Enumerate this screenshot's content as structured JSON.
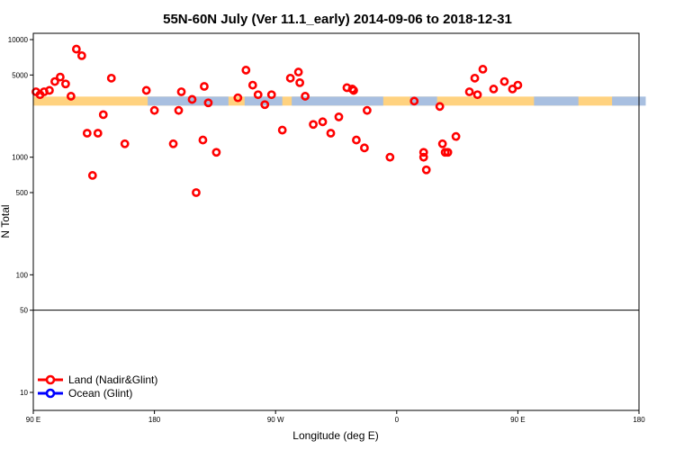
{
  "chart_data": {
    "type": "scatter",
    "title": "55N-60N July (Ver 11.1_early)   2014-09-06 to 2018-12-31",
    "xlabel": "Longitude (deg E)",
    "ylabel": "N Total",
    "y_scale": "log",
    "xlim": [
      90,
      450
    ],
    "ylim": [
      10,
      10000
    ],
    "x_ticks": [
      {
        "value": 90,
        "label": "90 E"
      },
      {
        "value": 180,
        "label": "180"
      },
      {
        "value": 270,
        "label": "90 W"
      },
      {
        "value": 360,
        "label": "0"
      },
      {
        "value": 450,
        "label": "90 E"
      },
      {
        "value": 540,
        "label": "180"
      }
    ],
    "y_ticks": [
      {
        "value": 10,
        "label": "10"
      },
      {
        "value": 50,
        "label": "50"
      },
      {
        "value": 100,
        "label": "100"
      },
      {
        "value": 500,
        "label": "500"
      },
      {
        "value": 1000,
        "label": "1000"
      },
      {
        "value": 5000,
        "label": "5000"
      },
      {
        "value": 10000,
        "label": "10000"
      }
    ],
    "reference_line": 50,
    "legend_position": "bottom-left",
    "series": [
      {
        "name": "Land (Nadir&Glint)",
        "color": "#ff0000",
        "points": [
          [
            92,
            3600
          ],
          [
            95,
            3400
          ],
          [
            98,
            3600
          ],
          [
            102,
            3700
          ],
          [
            106,
            4400
          ],
          [
            110,
            4800
          ],
          [
            114,
            4200
          ],
          [
            118,
            3300
          ],
          [
            122,
            8300
          ],
          [
            126,
            7300
          ],
          [
            130,
            1600
          ],
          [
            134,
            700
          ],
          [
            138,
            1600
          ],
          [
            142,
            2300
          ],
          [
            148,
            4700
          ],
          [
            158,
            1300
          ],
          [
            174,
            3700
          ],
          [
            180,
            2500
          ],
          [
            194,
            1300
          ],
          [
            198,
            2500
          ],
          [
            200,
            3600
          ],
          [
            208,
            3100
          ],
          [
            211,
            500
          ],
          [
            216,
            1400
          ],
          [
            217,
            4000
          ],
          [
            220,
            2900
          ],
          [
            226,
            1100
          ],
          [
            242,
            3200
          ],
          [
            248,
            5500
          ],
          [
            253,
            4100
          ],
          [
            257,
            3400
          ],
          [
            262,
            2800
          ],
          [
            267,
            3400
          ],
          [
            275,
            1700
          ],
          [
            281,
            4700
          ],
          [
            287,
            5300
          ],
          [
            288,
            4300
          ],
          [
            292,
            3300
          ],
          [
            298,
            1900
          ],
          [
            305,
            2000
          ],
          [
            311,
            1600
          ],
          [
            317,
            2200
          ],
          [
            323,
            3900
          ],
          [
            327,
            3800
          ],
          [
            328,
            3700
          ],
          [
            330,
            1400
          ],
          [
            336,
            1200
          ],
          [
            338,
            2500
          ],
          [
            355,
            1000
          ],
          [
            373,
            3000
          ],
          [
            380,
            1100
          ],
          [
            380,
            1000
          ],
          [
            382,
            780
          ],
          [
            392,
            2700
          ],
          [
            394,
            1300
          ],
          [
            396,
            1100
          ],
          [
            398,
            1100
          ],
          [
            404,
            1500
          ],
          [
            414,
            3600
          ],
          [
            418,
            4700
          ],
          [
            420,
            3400
          ],
          [
            424,
            5600
          ],
          [
            432,
            3800
          ],
          [
            440,
            4400
          ],
          [
            446,
            3800
          ],
          [
            450,
            4100
          ]
        ],
        "x_range_note": ""
      }
    ]
  },
  "legend": {
    "land_label": "Land (Nadir&Glint)",
    "ocean_label": "Ocean (Glint)"
  },
  "colors": {
    "land": "#ff0000",
    "ocean": "#0000ff",
    "land_band": "#ffd27f",
    "ocean_band": "#a8bfe0"
  }
}
